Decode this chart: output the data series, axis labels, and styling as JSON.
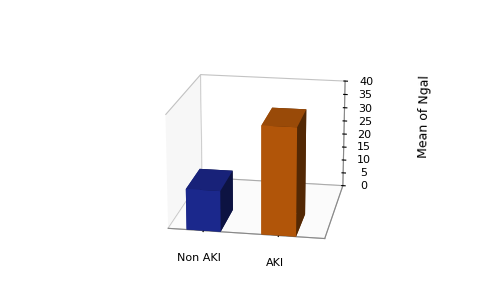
{
  "categories": [
    "Non AKI",
    "AKI"
  ],
  "values": [
    14.5,
    38.0
  ],
  "bar_colors_front": [
    "#1f2d9e",
    "#c8600a"
  ],
  "bar_colors_side": [
    "#3040bb",
    "#d97520"
  ],
  "bar_colors_top": [
    "#4050cc",
    "#e08830"
  ],
  "ylabel": "Mean of Ngal",
  "ylim": [
    0,
    40
  ],
  "yticks": [
    0,
    5,
    10,
    15,
    20,
    25,
    30,
    35,
    40
  ],
  "bar_width": 0.55,
  "bar_depth": 0.4,
  "background_color": "#ffffff",
  "tick_fontsize": 8,
  "label_fontsize": 9,
  "elev": 18,
  "azim": -80
}
